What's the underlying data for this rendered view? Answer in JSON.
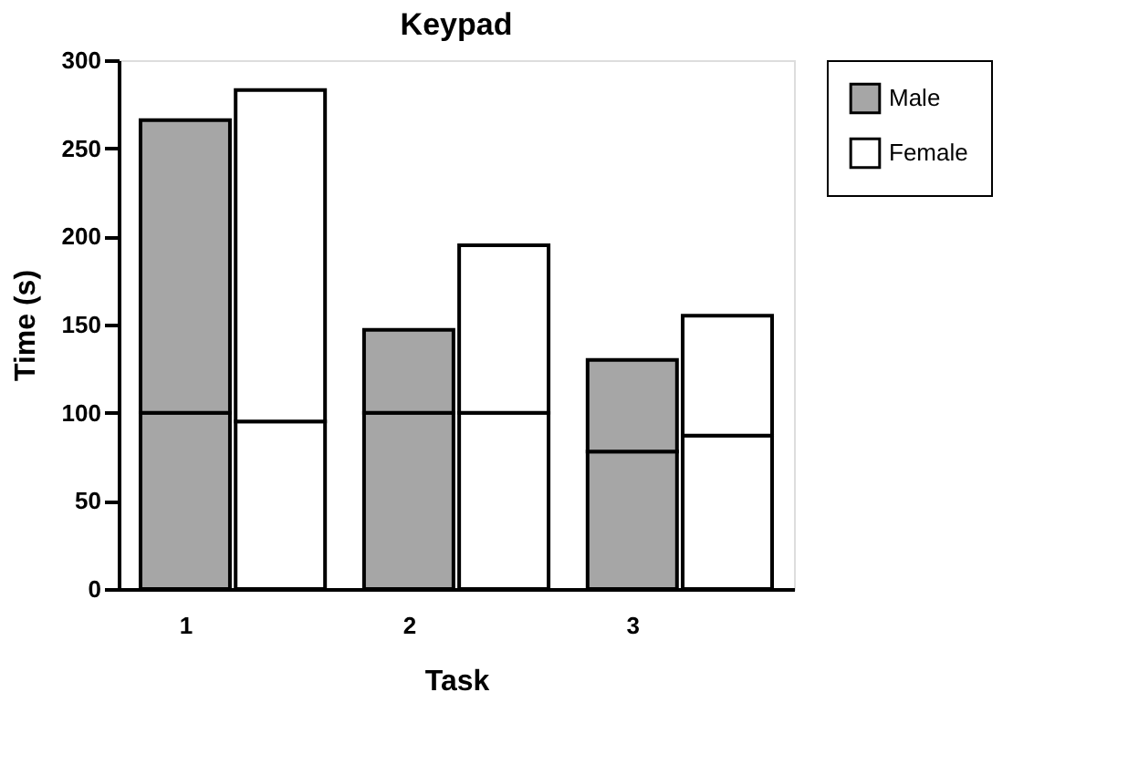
{
  "chart_data": {
    "type": "bar",
    "title": "Keypad",
    "xlabel": "Task",
    "ylabel": "Time (s)",
    "categories": [
      "1",
      null,
      "2",
      null,
      "3",
      null
    ],
    "stacked": true,
    "series": [
      {
        "name": "Male",
        "color": "#a6a6a6",
        "values": [
          100,
          null,
          100,
          null,
          78,
          null
        ]
      },
      {
        "color": "#a6a6a6",
        "values": [
          166,
          null,
          47,
          null,
          52,
          null
        ]
      },
      {
        "name": "Female",
        "color": "#ffffff",
        "values": [
          null,
          95,
          null,
          100,
          null,
          87
        ]
      },
      {
        "color": "#ffffff",
        "values": [
          null,
          188,
          null,
          95,
          null,
          68
        ]
      }
    ],
    "ylim": [
      0,
      300
    ],
    "yticks": [
      0,
      50,
      100,
      150,
      200,
      250,
      300
    ],
    "grid": false,
    "legend": "right"
  }
}
